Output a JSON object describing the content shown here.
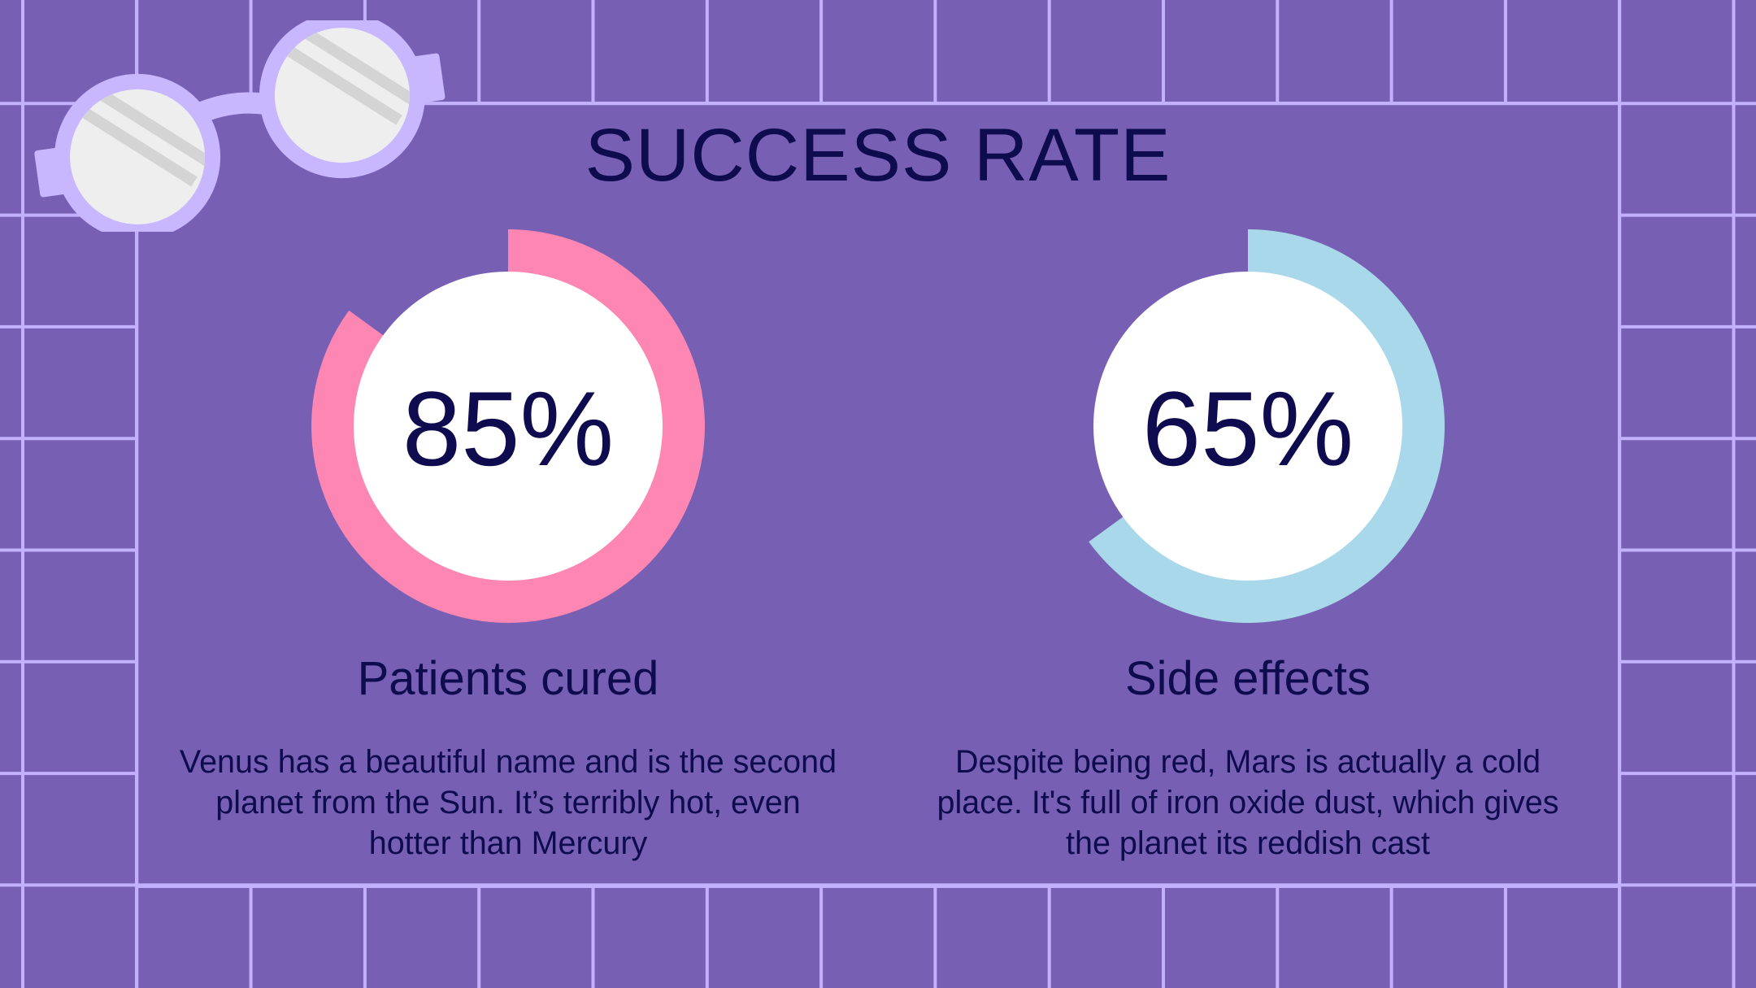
{
  "slide": {
    "title": "SUCCESS RATE",
    "colors": {
      "background": "#775FB3",
      "grid": "#C3B1FF",
      "text": "#0E0B4F",
      "glasses_frame": "#C8B7FF",
      "lens": "#EEEEEE"
    },
    "decoration": "glasses-icon",
    "stats": [
      {
        "percent": 85,
        "value_label": "85%",
        "ring_color": "#FD86B3",
        "label": "Patients cured",
        "description_lines": [
          "Venus has a beautiful name and is the second",
          "planet from the Sun. It’s terribly hot, even",
          "hotter than Mercury"
        ]
      },
      {
        "percent": 65,
        "value_label": "65%",
        "ring_color": "#A8D8EA",
        "label": "Side effects",
        "description_lines": [
          "Despite being red, Mars is actually a cold",
          "place. It's full of iron oxide dust, which gives",
          "the planet its reddish cast"
        ]
      }
    ]
  }
}
